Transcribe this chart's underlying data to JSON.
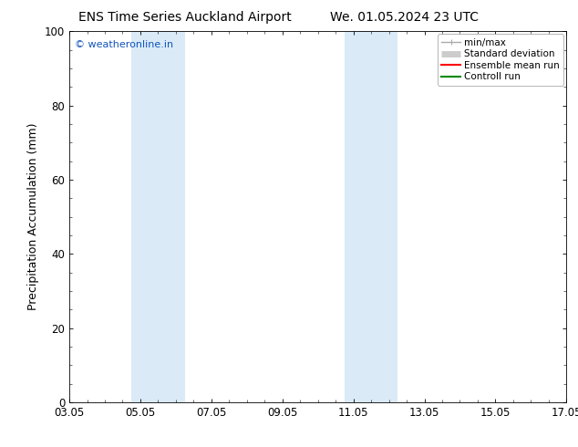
{
  "title_left": "ENS Time Series Auckland Airport",
  "title_right": "We. 01.05.2024 23 UTC",
  "ylabel": "Precipitation Accumulation (mm)",
  "ylim": [
    0,
    100
  ],
  "yticks": [
    0,
    20,
    40,
    60,
    80,
    100
  ],
  "xticks_labels": [
    "03.05",
    "05.05",
    "07.05",
    "09.05",
    "11.05",
    "13.05",
    "15.05",
    "17.05"
  ],
  "xticks_pos": [
    0,
    2,
    4,
    6,
    8,
    10,
    12,
    14
  ],
  "background_color": "#ffffff",
  "shaded_regions": [
    {
      "x_start": 1.75,
      "x_end": 3.25,
      "color": "#daeaf7"
    },
    {
      "x_start": 7.75,
      "x_end": 9.25,
      "color": "#daeaf7"
    }
  ],
  "watermark_text": "© weatheronline.in",
  "watermark_color": "#1155bb",
  "legend_items": [
    {
      "label": "min/max",
      "color": "#aaaaaa",
      "lw": 1.0
    },
    {
      "label": "Standard deviation",
      "color": "#cccccc",
      "lw": 5
    },
    {
      "label": "Ensemble mean run",
      "color": "#ff0000",
      "lw": 1.5
    },
    {
      "label": "Controll run",
      "color": "#008800",
      "lw": 1.5
    }
  ],
  "title_fontsize": 10,
  "axis_fontsize": 9,
  "tick_fontsize": 8.5,
  "watermark_fontsize": 8
}
